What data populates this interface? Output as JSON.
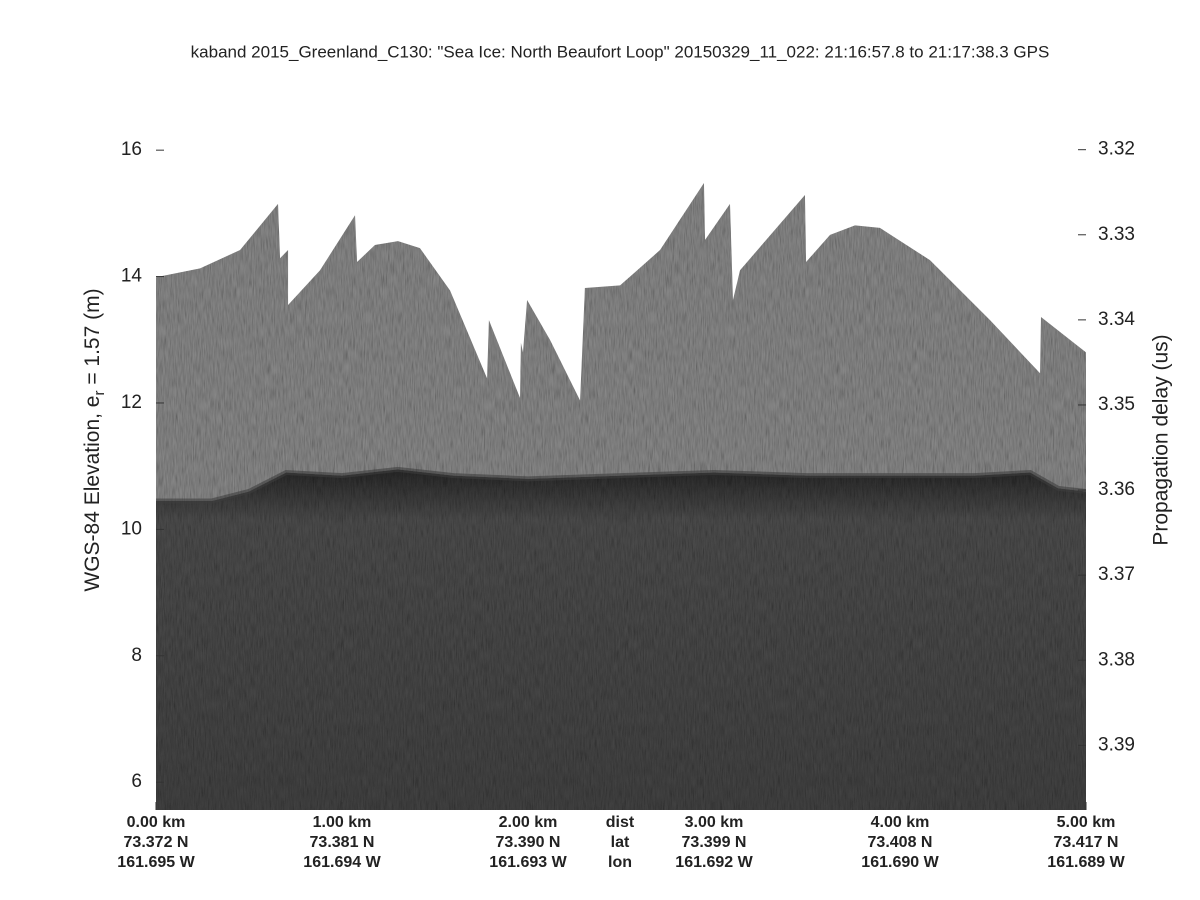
{
  "chart_data": {
    "type": "echogram",
    "title": "kaband 2015_Greenland_C130: \"Sea Ice: North Beaufort Loop\"  20150329_11_022: 21:16:57.8 to 21:17:38.3 GPS",
    "ylabel": [
      "WGS-84 Elevation, e",
      "r",
      " = 1.57 (m)"
    ],
    "y2label": "Propagation delay (us)",
    "xlim": [
      0,
      5
    ],
    "xticks": [
      0,
      1,
      2,
      3,
      4,
      5
    ],
    "x_rows": [
      {
        "name": "dist",
        "labels": [
          "0.00 km",
          "1.00 km",
          "2.00 km",
          "3.00 km",
          "4.00 km",
          "5.00 km"
        ]
      },
      {
        "name": "lat",
        "labels": [
          "73.372 N",
          "73.381 N",
          "73.390 N",
          "73.399 N",
          "73.408 N",
          "73.417 N"
        ]
      },
      {
        "name": "lon",
        "labels": [
          "161.695 W",
          "161.694 W",
          "161.693 W",
          "161.692 W",
          "161.690 W",
          "161.689 W"
        ]
      }
    ],
    "ylim": [
      5.56,
      17.3
    ],
    "yticks": [
      6,
      8,
      10,
      12,
      14,
      16
    ],
    "y2lim": [
      3.3976,
      3.3104
    ],
    "y2ticks": [
      3.32,
      3.33,
      3.34,
      3.35,
      3.36,
      3.37,
      3.38,
      3.39
    ],
    "series": [
      {
        "color": "#8c8c8c",
        "x": [
          0,
          0.237,
          0.452,
          0.656,
          0.667,
          0.71,
          0.71,
          0.882,
          1.07,
          1.081,
          1.177,
          1.301,
          1.419,
          1.581,
          1.78,
          1.79,
          1.957,
          1.962,
          1.973,
          1.995,
          2.118,
          2.28,
          2.306,
          2.495,
          2.71,
          2.946,
          2.952,
          3.086,
          3.102,
          3.14,
          3.489,
          3.495,
          3.624,
          3.758,
          3.892,
          4.161,
          4.484,
          4.753,
          4.758,
          5
        ],
        "values": [
          13.99,
          14.13,
          14.42,
          15.15,
          14.29,
          14.42,
          13.55,
          14.1,
          14.97,
          14.23,
          14.5,
          14.56,
          14.45,
          13.78,
          12.39,
          13.31,
          12.08,
          12.95,
          12.8,
          13.63,
          13,
          12.04,
          13.82,
          13.86,
          14.42,
          15.48,
          14.58,
          15.15,
          13.63,
          14.1,
          15.29,
          14.23,
          14.66,
          14.81,
          14.77,
          14.26,
          13.31,
          12.47,
          13.36,
          12.8
        ]
      },
      {
        "color": "#3e3e3e",
        "x": [
          0,
          0.3,
          0.5,
          0.7,
          1.0,
          1.3,
          1.6,
          2.0,
          2.5,
          3.0,
          3.5,
          4.0,
          4.4,
          4.7,
          4.85,
          5
        ],
        "values": [
          10.45,
          10.45,
          10.6,
          10.9,
          10.85,
          10.95,
          10.85,
          10.8,
          10.85,
          10.9,
          10.85,
          10.85,
          10.85,
          10.9,
          10.65,
          10.6
        ]
      }
    ]
  }
}
